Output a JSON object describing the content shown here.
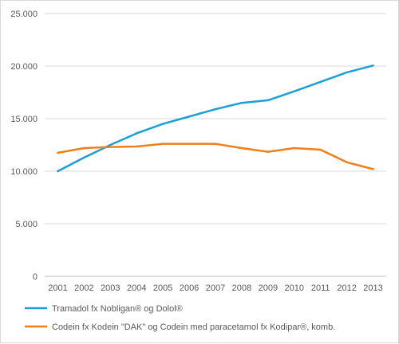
{
  "chart_data": {
    "type": "line",
    "x": [
      "2001",
      "2002",
      "2003",
      "2004",
      "2005",
      "2006",
      "2007",
      "2008",
      "2009",
      "2010",
      "2011",
      "2012",
      "2013"
    ],
    "ylim": [
      0,
      25000
    ],
    "yticks": [
      0,
      5000,
      10000,
      15000,
      20000,
      25000
    ],
    "ytick_labels": [
      "0",
      "5.000",
      "10.000",
      "15.000",
      "20.000",
      "25.000"
    ],
    "grid": true,
    "legend_position": "bottom",
    "series": [
      {
        "name": "Tramadol fx Nobligan® og Dolol®",
        "color": "#1aa0d6",
        "values": [
          10000,
          11300,
          12500,
          13600,
          14500,
          15200,
          15900,
          16500,
          16750,
          17600,
          18500,
          19400,
          20050
        ]
      },
      {
        "name": "Codein fx Kodein \"DAK\" og Codein med paracetamol fx Kodipar®, komb.",
        "color": "#f07f1a",
        "values": [
          11750,
          12200,
          12300,
          12350,
          12600,
          12600,
          12600,
          12200,
          11850,
          12200,
          12050,
          10850,
          10200
        ]
      }
    ]
  }
}
